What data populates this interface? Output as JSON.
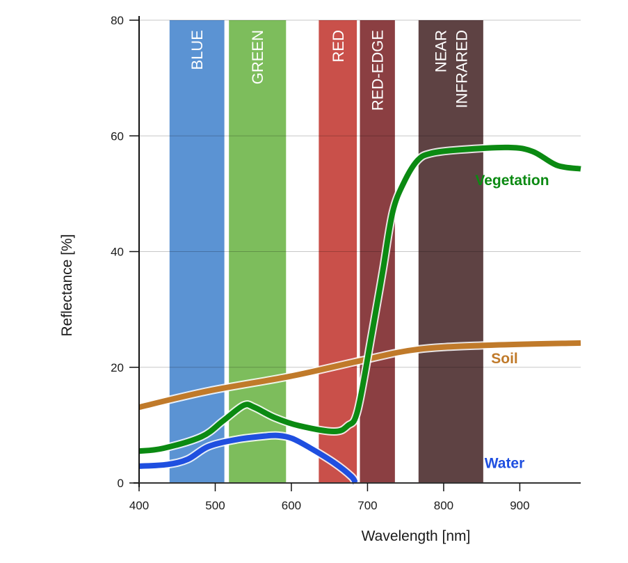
{
  "chart_data": {
    "type": "line",
    "title": "",
    "xlabel": "Wavelength [nm]",
    "ylabel": "Reflectance [%]",
    "xlim": [
      400,
      980
    ],
    "ylim": [
      0,
      80
    ],
    "xticks": [
      400,
      500,
      600,
      700,
      800,
      900
    ],
    "yticks": [
      0,
      20,
      40,
      60,
      80
    ],
    "grid": "horizontal",
    "legend": "inline labels at right",
    "bands": [
      {
        "name": "BLUE",
        "label_lines": [
          "BLUE"
        ],
        "start": 440,
        "end": 512,
        "color": "#5b93d3"
      },
      {
        "name": "GREEN",
        "label_lines": [
          "GREEN"
        ],
        "start": 518,
        "end": 593,
        "color": "#7dbd5c"
      },
      {
        "name": "RED",
        "label_lines": [
          "RED"
        ],
        "start": 636,
        "end": 686,
        "color": "#c9504a"
      },
      {
        "name": "RED-EDGE",
        "label_lines": [
          "RED-EDGE"
        ],
        "start": 690,
        "end": 736,
        "color": "#8b3f42"
      },
      {
        "name": "NEAR INFRARED",
        "label_lines": [
          "NEAR",
          "INFRARED"
        ],
        "start": 767,
        "end": 852,
        "color": "#5e4243"
      }
    ],
    "series": [
      {
        "name": "Vegetation",
        "color": "#0b8a12",
        "x": [
          400,
          432,
          482,
          510,
          537,
          551,
          578,
          610,
          656,
          674,
          687,
          706,
          720,
          733,
          748,
          766,
          784,
          821,
          885,
          917,
          949,
          980
        ],
        "y": [
          5.5,
          6.0,
          8.0,
          10.7,
          13.4,
          13.1,
          11.3,
          9.9,
          8.9,
          9.9,
          12.5,
          26.0,
          36.6,
          46.8,
          52.0,
          55.8,
          57.0,
          57.6,
          58.0,
          57.3,
          54.9,
          54.3
        ],
        "label_at": [
          890,
          51.5
        ]
      },
      {
        "name": "Soil",
        "color": "#c07a2a",
        "x": [
          400,
          491,
          601,
          693,
          766,
          857,
          980
        ],
        "y": [
          13.1,
          15.9,
          18.5,
          21.2,
          23.1,
          23.8,
          24.2
        ],
        "label_at": [
          880,
          20.7
        ]
      },
      {
        "name": "Water",
        "color": "#1f4fe0",
        "x": [
          400,
          437,
          464,
          491,
          528,
          565,
          583,
          601,
          624,
          656,
          679,
          684
        ],
        "y": [
          2.9,
          3.2,
          4.1,
          6.3,
          7.5,
          8.1,
          8.2,
          7.7,
          6.1,
          3.5,
          1.1,
          0.0
        ],
        "label_at": [
          880,
          2.6
        ]
      }
    ]
  }
}
